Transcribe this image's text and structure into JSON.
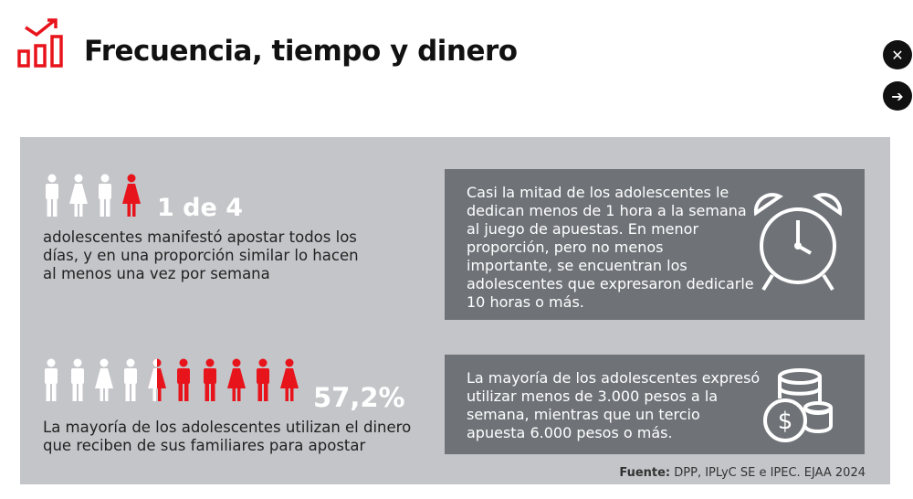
{
  "header": {
    "title": "Frecuencia, tiempo y dinero",
    "logo_icon": "chart-growth-icon",
    "close_icon": "close-icon",
    "next_icon": "arrow-right-icon"
  },
  "stat1": {
    "value": "1 de 4",
    "text_lines": [
      "adolescentes manifestó apostar todos los",
      "días, y en una proporción similar lo hacen",
      "al menos una vez por semana"
    ],
    "filled": 1,
    "total": 4
  },
  "stat2": {
    "value": "57,2%",
    "text_lines": [
      "La mayoría de los adolescentes utilizan el dinero",
      "que reciben de sus familiares para apostar"
    ],
    "percent": 57.2
  },
  "box1": {
    "lines": [
      "Casi la mitad de los adolescentes le",
      "dedican menos de 1 hora a la semana",
      "al juego de apuestas. En menor",
      "proporción, pero no menos",
      "importante, se encuentran los",
      "adolescentes que expresaron dedicarle",
      "10 horas o más."
    ],
    "icon": "alarm-clock-icon"
  },
  "box2": {
    "lines": [
      "La mayoría de los adolescentes expresó",
      "utilizar menos de 3.000 pesos a la",
      "semana, mientras que un tercio",
      "apuesta 6.000 pesos o más."
    ],
    "icon": "coins-dollar-icon"
  },
  "source": {
    "label": "Fuente:",
    "text": " DPP, IPLyC SE e IPEC. EJAA 2024"
  },
  "colors": {
    "accent": "#e8141c",
    "panel": "#c4c5c9",
    "box": "#6f7378"
  }
}
